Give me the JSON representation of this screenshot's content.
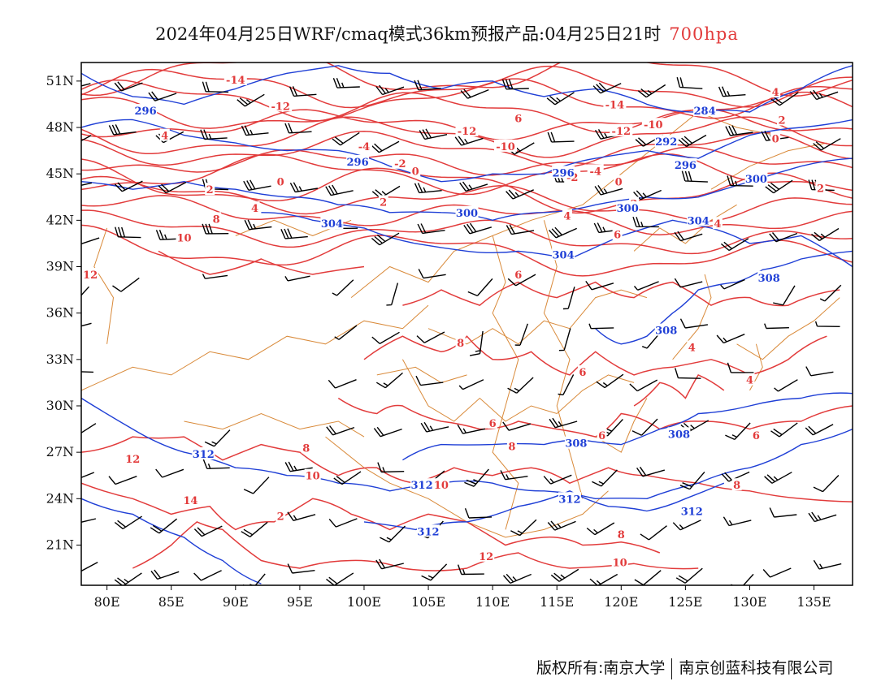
{
  "header": {
    "title": "2024年04月25日WRF/cmaq模式36km预报产品:04月25日21时",
    "level": "700hpa"
  },
  "footer": {
    "copyright": "版权所有:南京大学",
    "company": "南京创蓝科技有限公司"
  },
  "map": {
    "lon_labels": [
      "80E",
      "85E",
      "90E",
      "95E",
      "100E",
      "105E",
      "110E",
      "115E",
      "120E",
      "125E",
      "130E",
      "135E"
    ],
    "lat_labels": [
      "51N",
      "48N",
      "45N",
      "42N",
      "39N",
      "36N",
      "33N",
      "30N",
      "27N",
      "24N",
      "21N"
    ],
    "colors": {
      "temperature": "#e23b3b",
      "height": "#1f3fd6",
      "boundary": "#d98a3a",
      "wind": "#000000"
    },
    "temperature_labels": [
      {
        "text": "-14",
        "lon": 90,
        "lat": 51.1
      },
      {
        "text": "-12",
        "lon": 93.5,
        "lat": 49.4
      },
      {
        "text": "-12",
        "lon": 108,
        "lat": 47.8
      },
      {
        "text": "-14",
        "lon": 119.5,
        "lat": 49.5
      },
      {
        "text": "-10",
        "lon": 111,
        "lat": 46.8
      },
      {
        "text": "-10",
        "lon": 122.5,
        "lat": 48.2
      },
      {
        "text": "-12",
        "lon": 120,
        "lat": 47.8
      },
      {
        "text": "-4",
        "lon": 118,
        "lat": 45.2
      },
      {
        "text": "-4",
        "lon": 100,
        "lat": 46.8
      },
      {
        "text": "-2",
        "lon": 102.8,
        "lat": 45.7
      },
      {
        "text": "-2",
        "lon": 116.2,
        "lat": 44.8
      },
      {
        "text": "0",
        "lon": 104,
        "lat": 45.2
      },
      {
        "text": "0",
        "lon": 119.8,
        "lat": 44.5
      },
      {
        "text": "2",
        "lon": 101.5,
        "lat": 43.2
      },
      {
        "text": "2",
        "lon": 121,
        "lat": 43.1
      },
      {
        "text": "4",
        "lon": 115.8,
        "lat": 42.3
      },
      {
        "text": "6",
        "lon": 119.7,
        "lat": 41.1
      },
      {
        "text": "6",
        "lon": 112,
        "lat": 38.5
      },
      {
        "text": "4",
        "lon": 91.5,
        "lat": 42.8
      },
      {
        "text": "2",
        "lon": 88,
        "lat": 44
      },
      {
        "text": "0",
        "lon": 93.5,
        "lat": 44.5
      },
      {
        "text": "4",
        "lon": 84.5,
        "lat": 47.5
      },
      {
        "text": "4",
        "lon": 127.5,
        "lat": 41.8
      },
      {
        "text": "4",
        "lon": 132,
        "lat": 50.3
      },
      {
        "text": "2",
        "lon": 132.5,
        "lat": 48.5
      },
      {
        "text": "0",
        "lon": 132,
        "lat": 47.3
      },
      {
        "text": "2",
        "lon": 135.5,
        "lat": 44.1
      },
      {
        "text": "6",
        "lon": 112,
        "lat": 48.6
      },
      {
        "text": "8",
        "lon": 88.5,
        "lat": 42.1
      },
      {
        "text": "10",
        "lon": 86,
        "lat": 40.9
      },
      {
        "text": "12",
        "lon": 78.7,
        "lat": 38.5
      },
      {
        "text": "8",
        "lon": 107.5,
        "lat": 34.1
      },
      {
        "text": "6",
        "lon": 117,
        "lat": 32.2
      },
      {
        "text": "6",
        "lon": 110,
        "lat": 28.9
      },
      {
        "text": "8",
        "lon": 111.5,
        "lat": 27.4
      },
      {
        "text": "6",
        "lon": 118.5,
        "lat": 28.1
      },
      {
        "text": "8",
        "lon": 95.5,
        "lat": 27.3
      },
      {
        "text": "10",
        "lon": 96,
        "lat": 25.5
      },
      {
        "text": "10",
        "lon": 106,
        "lat": 24.9
      },
      {
        "text": "12",
        "lon": 82,
        "lat": 26.6
      },
      {
        "text": "14",
        "lon": 86.5,
        "lat": 23.9
      },
      {
        "text": "2",
        "lon": 93.5,
        "lat": 22.9
      },
      {
        "text": "12",
        "lon": 109.5,
        "lat": 20.3
      },
      {
        "text": "10",
        "lon": 119.9,
        "lat": 19.9
      },
      {
        "text": "8",
        "lon": 120,
        "lat": 21.7
      },
      {
        "text": "4",
        "lon": 125.5,
        "lat": 33.8
      },
      {
        "text": "4",
        "lon": 130,
        "lat": 31.7
      },
      {
        "text": "6",
        "lon": 130.5,
        "lat": 28.1
      },
      {
        "text": "8",
        "lon": 129,
        "lat": 24.9
      }
    ],
    "height_labels": [
      {
        "text": "296",
        "lon": 83,
        "lat": 49.1
      },
      {
        "text": "296",
        "lon": 99.5,
        "lat": 45.8
      },
      {
        "text": "296",
        "lon": 115.5,
        "lat": 45.1
      },
      {
        "text": "292",
        "lon": 123.5,
        "lat": 47.1
      },
      {
        "text": "284",
        "lon": 126.5,
        "lat": 49.1
      },
      {
        "text": "296",
        "lon": 125,
        "lat": 45.6
      },
      {
        "text": "300",
        "lon": 130.5,
        "lat": 44.7
      },
      {
        "text": "300",
        "lon": 108,
        "lat": 42.5
      },
      {
        "text": "300",
        "lon": 120.5,
        "lat": 42.8
      },
      {
        "text": "304",
        "lon": 97.5,
        "lat": 41.8
      },
      {
        "text": "304",
        "lon": 115.5,
        "lat": 39.8
      },
      {
        "text": "304",
        "lon": 126,
        "lat": 42
      },
      {
        "text": "308",
        "lon": 131.5,
        "lat": 38.3
      },
      {
        "text": "308",
        "lon": 123.5,
        "lat": 34.9
      },
      {
        "text": "308",
        "lon": 124.5,
        "lat": 28.2
      },
      {
        "text": "308",
        "lon": 116.5,
        "lat": 27.6
      },
      {
        "text": "312",
        "lon": 87.5,
        "lat": 26.9
      },
      {
        "text": "312",
        "lon": 104.5,
        "lat": 24.9
      },
      {
        "text": "312",
        "lon": 116,
        "lat": 24
      },
      {
        "text": "312",
        "lon": 125.5,
        "lat": 23.2
      },
      {
        "text": "312",
        "lon": 105,
        "lat": 21.9
      }
    ]
  }
}
